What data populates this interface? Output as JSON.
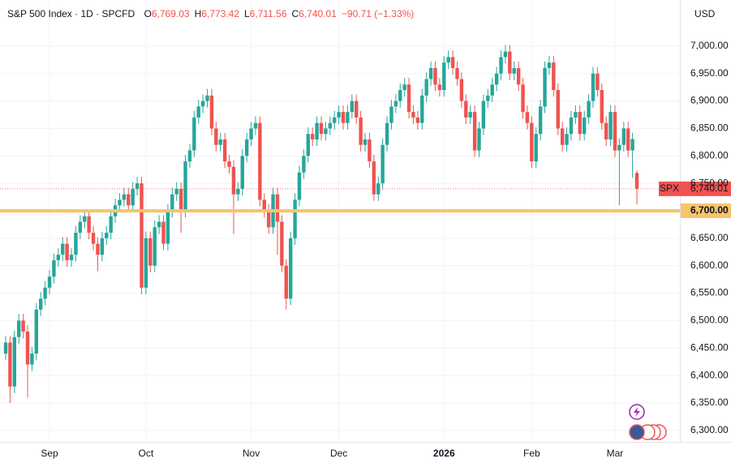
{
  "chart_data": {
    "type": "candlestick",
    "title": "S&P 500 Index · 1D · SPCFD",
    "ohlc_header": [
      {
        "key": "O",
        "value": 6769.03,
        "label": "6,769.03"
      },
      {
        "key": "H",
        "value": 6773.42,
        "label": "6,773.42"
      },
      {
        "key": "L",
        "value": 6711.56,
        "label": "6,711.56"
      },
      {
        "key": "C",
        "value": 6740.01,
        "label": "6,740.01"
      }
    ],
    "change_label": "−90.71 (−1.33%)",
    "currency": "USD",
    "symbol": "SPX",
    "last_price": {
      "value": 6740.01,
      "label": "6,740.01"
    },
    "hline": {
      "value": 6700,
      "label": "6,700.00",
      "color": "#f7c46c"
    },
    "up_color": "#26a69a",
    "down_color": "#ef5350",
    "grid": true,
    "ylim": [
      6279,
      7084
    ],
    "yticks": [
      {
        "value": 6300,
        "label": "6,300.00"
      },
      {
        "value": 6350,
        "label": "6,350.00"
      },
      {
        "value": 6400,
        "label": "6,400.00"
      },
      {
        "value": 6450,
        "label": "6,450.00"
      },
      {
        "value": 6500,
        "label": "6,500.00"
      },
      {
        "value": 6550,
        "label": "6,550.00"
      },
      {
        "value": 6600,
        "label": "6,600.00"
      },
      {
        "value": 6650,
        "label": "6,650.00"
      },
      {
        "value": 6700,
        "label": "6,700.00"
      },
      {
        "value": 6750,
        "label": "6,750.00"
      },
      {
        "value": 6800,
        "label": "6,800.00"
      },
      {
        "value": 6850,
        "label": "6,850.00"
      },
      {
        "value": 6900,
        "label": "6,900.00"
      },
      {
        "value": 6950,
        "label": "6,950.00"
      },
      {
        "value": 7000,
        "label": "7,000.00"
      }
    ],
    "categories": [
      null,
      null,
      null,
      null,
      null,
      null,
      null,
      null,
      null,
      null,
      "Sep",
      null,
      null,
      null,
      null,
      null,
      null,
      null,
      null,
      null,
      null,
      null,
      null,
      null,
      null,
      null,
      null,
      null,
      null,
      null,
      null,
      null,
      "Oct",
      null,
      null,
      null,
      null,
      null,
      null,
      null,
      null,
      null,
      null,
      null,
      null,
      null,
      null,
      null,
      null,
      null,
      null,
      null,
      null,
      null,
      null,
      null,
      "Nov",
      null,
      null,
      null,
      null,
      null,
      null,
      null,
      null,
      null,
      null,
      null,
      null,
      null,
      null,
      null,
      null,
      null,
      null,
      null,
      "Dec",
      null,
      null,
      null,
      null,
      null,
      null,
      null,
      null,
      null,
      null,
      null,
      null,
      null,
      null,
      null,
      null,
      null,
      null,
      null,
      null,
      null,
      null,
      null,
      "2026",
      null,
      null,
      null,
      null,
      null,
      null,
      null,
      null,
      null,
      null,
      null,
      null,
      null,
      null,
      null,
      null,
      null,
      null,
      null,
      "Feb",
      null,
      null,
      null,
      null,
      null,
      null,
      null,
      null,
      null,
      null,
      null,
      null,
      null,
      null,
      null,
      null,
      null,
      null,
      "Mar",
      null,
      null,
      null,
      null,
      null
    ],
    "open": [
      6440,
      6460,
      6380,
      6470,
      6500,
      6480,
      6420,
      6440,
      6520,
      6540,
      6560,
      6580,
      6610,
      6620,
      6640,
      6610,
      6620,
      6660,
      6680,
      6690,
      6660,
      6640,
      6620,
      6650,
      6660,
      6690,
      6710,
      6720,
      6730,
      6710,
      6740,
      6750,
      6560,
      6650,
      6600,
      6670,
      6680,
      6640,
      6700,
      6730,
      6740,
      6700,
      6790,
      6810,
      6870,
      6890,
      6900,
      6910,
      6850,
      6820,
      6830,
      6790,
      6780,
      6730,
      6740,
      6800,
      6830,
      6850,
      6860,
      6720,
      6700,
      6670,
      6730,
      6680,
      6600,
      6540,
      6650,
      6720,
      6770,
      6800,
      6840,
      6830,
      6860,
      6840,
      6850,
      6860,
      6870,
      6880,
      6860,
      6880,
      6900,
      6870,
      6820,
      6830,
      6790,
      6730,
      6750,
      6820,
      6860,
      6890,
      6900,
      6920,
      6930,
      6880,
      6870,
      6860,
      6910,
      6940,
      6960,
      6930,
      6920,
      6970,
      6980,
      6960,
      6940,
      6900,
      6870,
      6880,
      6810,
      6850,
      6900,
      6910,
      6930,
      6950,
      6980,
      6990,
      6950,
      6960,
      6930,
      6880,
      6860,
      6790,
      6840,
      6890,
      6960,
      6970,
      6920,
      6850,
      6820,
      6840,
      6870,
      6880,
      6840,
      6870,
      6900,
      6950,
      6920,
      6860,
      6830,
      6880,
      6810,
      6820,
      6850,
      6810,
      6769.03
    ],
    "high": [
      6472,
      6472,
      6482,
      6512,
      6512,
      6492,
      6452,
      6532,
      6552,
      6572,
      6592,
      6622,
      6632,
      6652,
      6652,
      6632,
      6672,
      6692,
      6702,
      6702,
      6672,
      6652,
      6662,
      6672,
      6702,
      6722,
      6732,
      6742,
      6742,
      6752,
      6762,
      6762,
      6662,
      6662,
      6682,
      6692,
      6692,
      6712,
      6742,
      6752,
      6752,
      6802,
      6822,
      6882,
      6902,
      6912,
      6922,
      6922,
      6862,
      6842,
      6842,
      6802,
      6792,
      6752,
      6812,
      6842,
      6862,
      6872,
      6872,
      6732,
      6712,
      6742,
      6742,
      6692,
      6612,
      6662,
      6732,
      6782,
      6812,
      6852,
      6852,
      6872,
      6872,
      6862,
      6872,
      6882,
      6892,
      6892,
      6892,
      6912,
      6912,
      6882,
      6842,
      6842,
      6802,
      6762,
      6832,
      6872,
      6902,
      6912,
      6932,
      6942,
      6942,
      6892,
      6882,
      6922,
      6952,
      6972,
      6972,
      6942,
      6982,
      6992,
      6992,
      6972,
      6952,
      6912,
      6892,
      6892,
      6862,
      6912,
      6922,
      6942,
      6962,
      6992,
      7002,
      7002,
      6972,
      6972,
      6942,
      6892,
      6872,
      6852,
      6902,
      6972,
      6982,
      6982,
      6932,
      6862,
      6852,
      6882,
      6892,
      6892,
      6882,
      6912,
      6962,
      6962,
      6932,
      6872,
      6892,
      6892,
      6832,
      6862,
      6862,
      6842,
      6773.42
    ],
    "low": [
      6428,
      6350,
      6368,
      6458,
      6468,
      6360,
      6408,
      6428,
      6508,
      6528,
      6548,
      6568,
      6598,
      6608,
      6598,
      6598,
      6608,
      6648,
      6668,
      6648,
      6628,
      6590,
      6608,
      6638,
      6648,
      6678,
      6698,
      6708,
      6698,
      6698,
      6728,
      6548,
      6548,
      6588,
      6588,
      6658,
      6628,
      6628,
      6688,
      6718,
      6660,
      6688,
      6778,
      6798,
      6858,
      6878,
      6888,
      6838,
      6808,
      6808,
      6778,
      6768,
      6658,
      6718,
      6728,
      6788,
      6818,
      6838,
      6708,
      6688,
      6658,
      6658,
      6620,
      6588,
      6520,
      6528,
      6638,
      6708,
      6758,
      6788,
      6818,
      6818,
      6828,
      6828,
      6838,
      6848,
      6858,
      6848,
      6848,
      6868,
      6858,
      6808,
      6808,
      6778,
      6718,
      6718,
      6738,
      6808,
      6848,
      6878,
      6888,
      6908,
      6868,
      6858,
      6848,
      6848,
      6898,
      6928,
      6918,
      6908,
      6908,
      6958,
      6948,
      6928,
      6888,
      6858,
      6858,
      6798,
      6798,
      6838,
      6888,
      6898,
      6918,
      6938,
      6968,
      6938,
      6938,
      6918,
      6868,
      6848,
      6778,
      6778,
      6828,
      6878,
      6948,
      6908,
      6838,
      6808,
      6808,
      6828,
      6858,
      6828,
      6828,
      6858,
      6888,
      6908,
      6848,
      6818,
      6818,
      6798,
      6710,
      6808,
      6798,
      6760,
      6711.56
    ],
    "close": [
      6460,
      6380,
      6470,
      6500,
      6480,
      6420,
      6440,
      6520,
      6540,
      6560,
      6580,
      6610,
      6620,
      6640,
      6610,
      6620,
      6660,
      6680,
      6690,
      6660,
      6640,
      6620,
      6650,
      6660,
      6690,
      6710,
      6720,
      6730,
      6710,
      6740,
      6750,
      6560,
      6650,
      6600,
      6670,
      6680,
      6640,
      6700,
      6730,
      6740,
      6700,
      6790,
      6810,
      6870,
      6890,
      6900,
      6910,
      6850,
      6820,
      6830,
      6790,
      6780,
      6730,
      6740,
      6800,
      6830,
      6850,
      6860,
      6720,
      6700,
      6670,
      6730,
      6680,
      6600,
      6540,
      6650,
      6720,
      6770,
      6800,
      6840,
      6830,
      6860,
      6840,
      6850,
      6860,
      6870,
      6880,
      6860,
      6880,
      6900,
      6870,
      6820,
      6830,
      6790,
      6730,
      6750,
      6820,
      6860,
      6890,
      6900,
      6920,
      6930,
      6880,
      6870,
      6860,
      6910,
      6940,
      6960,
      6930,
      6920,
      6970,
      6980,
      6960,
      6940,
      6900,
      6870,
      6880,
      6810,
      6850,
      6900,
      6910,
      6930,
      6950,
      6980,
      6990,
      6950,
      6960,
      6930,
      6880,
      6860,
      6790,
      6840,
      6890,
      6960,
      6970,
      6920,
      6850,
      6820,
      6840,
      6870,
      6880,
      6840,
      6870,
      6900,
      6950,
      6920,
      6860,
      6830,
      6880,
      6810,
      6820,
      6850,
      6810,
      6830.72,
      6740.01
    ]
  }
}
